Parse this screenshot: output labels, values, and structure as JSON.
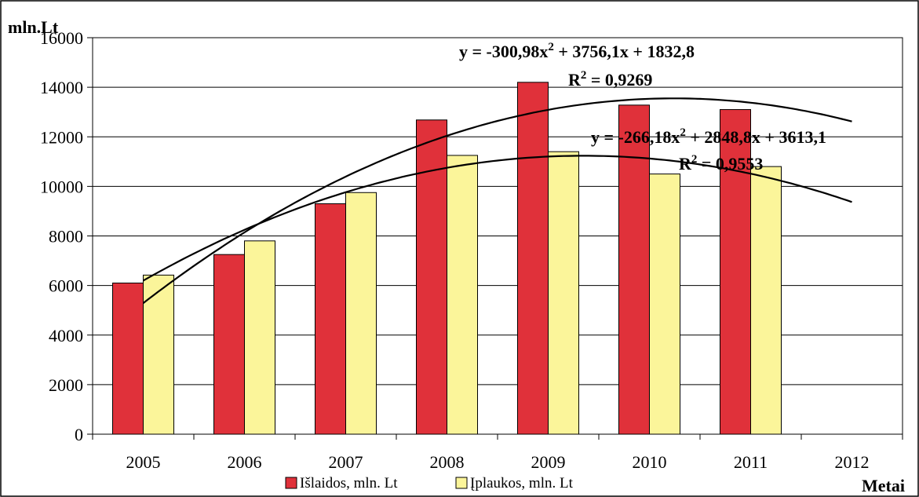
{
  "chart_data": {
    "type": "bar",
    "categories": [
      "2005",
      "2006",
      "2007",
      "2008",
      "2009",
      "2010",
      "2011",
      "2012"
    ],
    "series": [
      {
        "name": "Išlaidos, mln. Lt",
        "color": "#e0313a",
        "values": [
          6100,
          7250,
          9300,
          12680,
          14200,
          13280,
          13100,
          null
        ]
      },
      {
        "name": "Įplaukos, mln. Lt",
        "color": "#fbf59a",
        "values": [
          6420,
          7800,
          9750,
          11250,
          11400,
          10500,
          10800,
          null
        ]
      }
    ],
    "trendlines": [
      {
        "coefficients": [
          -300.98,
          3756.1,
          1832.8
        ],
        "equation_prefix": "y = -300,98x",
        "equation_suffix": " + 3756,1x + 1832,8",
        "r2_prefix": "R",
        "r2_suffix": " = 0,9269"
      },
      {
        "coefficients": [
          -266.18,
          2848.8,
          3613.1
        ],
        "equation_prefix": "y = -266,18x",
        "equation_suffix": " + 2848,8x + 3613,1",
        "r2_prefix": "R",
        "r2_suffix": " = 0,9553"
      }
    ],
    "superscript": "2",
    "ylabel": "mln.Lt",
    "xlabel": "Metai",
    "ylim": [
      0,
      16000
    ],
    "yticks": [
      0,
      2000,
      4000,
      6000,
      8000,
      10000,
      12000,
      14000,
      16000
    ],
    "grid": true,
    "legend_position": "bottom"
  }
}
